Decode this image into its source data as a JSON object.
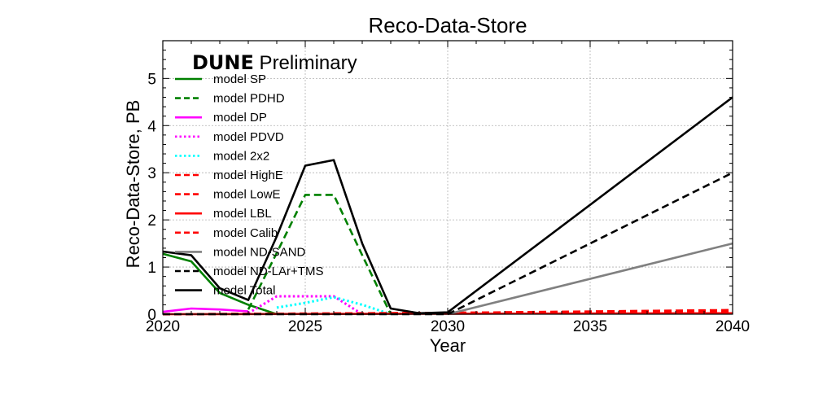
{
  "chart_data": {
    "type": "line",
    "title": "Reco-Data-Store",
    "watermark": {
      "bold": "DUNE",
      "rest": " Preliminary"
    },
    "xlabel": "Year",
    "ylabel": "Reco-Data-Store, PB",
    "xlim": [
      2020,
      2040
    ],
    "ylim": [
      0,
      5.8
    ],
    "xticks": [
      2020,
      2025,
      2030,
      2035,
      2040
    ],
    "yticks": [
      0,
      1,
      2,
      3,
      4,
      5
    ],
    "grid": true,
    "legend_position": "top-left",
    "series": [
      {
        "name": "model SP",
        "color": "#008000",
        "style": "solid",
        "x": [
          2020,
          2021,
          2022,
          2023,
          2024
        ],
        "y": [
          1.28,
          1.12,
          0.45,
          0.2,
          0
        ]
      },
      {
        "name": "model PDHD",
        "color": "#008000",
        "style": "dashed",
        "x": [
          2023,
          2024,
          2025,
          2026,
          2027,
          2028
        ],
        "y": [
          0.1,
          1.3,
          2.53,
          2.53,
          1.25,
          0
        ]
      },
      {
        "name": "model DP",
        "color": "#ff00ff",
        "style": "solid",
        "x": [
          2020,
          2021,
          2022,
          2023
        ],
        "y": [
          0.05,
          0.12,
          0.1,
          0.06
        ]
      },
      {
        "name": "model PDVD",
        "color": "#ff00ff",
        "style": "dotted",
        "x": [
          2023,
          2024,
          2025,
          2026,
          2027
        ],
        "y": [
          0.02,
          0.38,
          0.38,
          0.38,
          0
        ]
      },
      {
        "name": "model 2x2",
        "color": "#00ffff",
        "style": "dotted",
        "x": [
          2024,
          2025,
          2026,
          2027,
          2028
        ],
        "y": [
          0.14,
          0.24,
          0.36,
          0.2,
          0
        ]
      },
      {
        "name": "model HighE",
        "color": "#ff0000",
        "style": "dashed",
        "x": [
          2020,
          2030,
          2040
        ],
        "y": [
          0,
          0.02,
          0.05
        ]
      },
      {
        "name": "model LowE",
        "color": "#ff0000",
        "style": "dashed",
        "x": [
          2020,
          2030,
          2040
        ],
        "y": [
          0,
          0.03,
          0.08
        ]
      },
      {
        "name": "model LBL",
        "color": "#ff0000",
        "style": "solid",
        "x": [
          2020,
          2030,
          2040
        ],
        "y": [
          0,
          0.01,
          0.02
        ]
      },
      {
        "name": "model Calib",
        "color": "#ff0000",
        "style": "dashed",
        "x": [
          2020,
          2030,
          2040
        ],
        "y": [
          0,
          0.03,
          0.09
        ]
      },
      {
        "name": "model ND-SAND",
        "color": "#808080",
        "style": "solid",
        "x": [
          2030,
          2040
        ],
        "y": [
          0,
          1.5
        ]
      },
      {
        "name": "model ND-LAr+TMS",
        "color": "#000000",
        "style": "dashed",
        "x": [
          2020,
          2029,
          2030,
          2040
        ],
        "y": [
          0,
          0,
          0,
          3.0
        ]
      },
      {
        "name": "model Total",
        "color": "#000000",
        "style": "solid",
        "x": [
          2020,
          2021,
          2022,
          2023,
          2024,
          2025,
          2026,
          2027,
          2028,
          2029,
          2030,
          2040
        ],
        "y": [
          1.33,
          1.25,
          0.55,
          0.3,
          1.65,
          3.15,
          3.27,
          1.5,
          0.12,
          0.02,
          0.04,
          4.6
        ]
      }
    ]
  }
}
